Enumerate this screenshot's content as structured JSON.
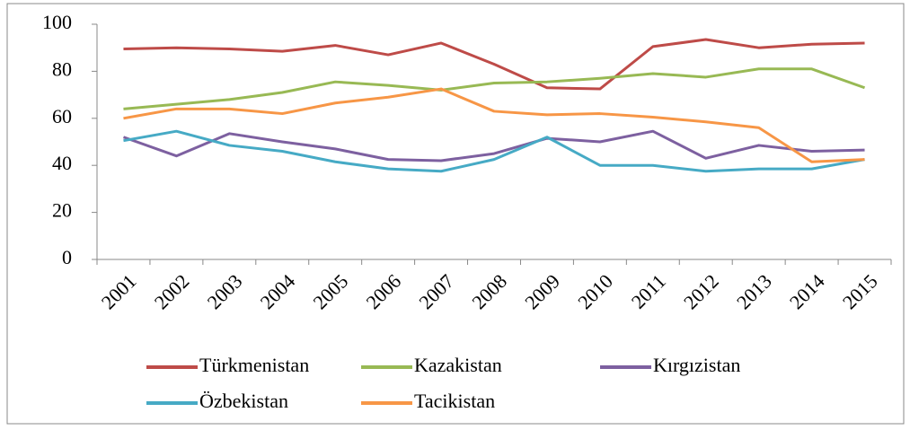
{
  "chart_data": {
    "type": "line",
    "categories": [
      "2001",
      "2002",
      "2003",
      "2004",
      "2005",
      "2006",
      "2007",
      "2008",
      "2009",
      "2010",
      "2011",
      "2012",
      "2013",
      "2014",
      "2015"
    ],
    "series": [
      {
        "name": "Türkmenistan",
        "color": "#be4b48",
        "values": [
          89.5,
          90,
          89.5,
          88.5,
          91,
          87,
          92,
          83,
          73,
          72.5,
          90.5,
          93.5,
          90,
          91.5,
          92
        ]
      },
      {
        "name": "Kazakistan",
        "color": "#98b954",
        "values": [
          64,
          66,
          68,
          71,
          75.5,
          74,
          72,
          75,
          75.5,
          77,
          79,
          77.5,
          81,
          81,
          73
        ]
      },
      {
        "name": "Kırgızistan",
        "color": "#7d60a0",
        "values": [
          52,
          44,
          53.5,
          50,
          47,
          42.5,
          42,
          45,
          51.5,
          50,
          54.5,
          43,
          48.5,
          46,
          46.5
        ]
      },
      {
        "name": "Özbekistan",
        "color": "#46aac5",
        "values": [
          50.5,
          54.5,
          48.5,
          46,
          41.5,
          38.5,
          37.5,
          42.5,
          52,
          40,
          40,
          37.5,
          38.5,
          38.5,
          42.5
        ]
      },
      {
        "name": "Tacikistan",
        "color": "#f79646",
        "values": [
          60,
          64,
          64,
          62,
          66.5,
          69,
          72.5,
          63,
          61.5,
          62,
          60.5,
          58.5,
          56,
          41.5,
          42.5
        ]
      }
    ],
    "ylim": [
      0,
      100
    ],
    "yticks": [
      0,
      20,
      40,
      60,
      80,
      100
    ],
    "legend": "bottom"
  }
}
